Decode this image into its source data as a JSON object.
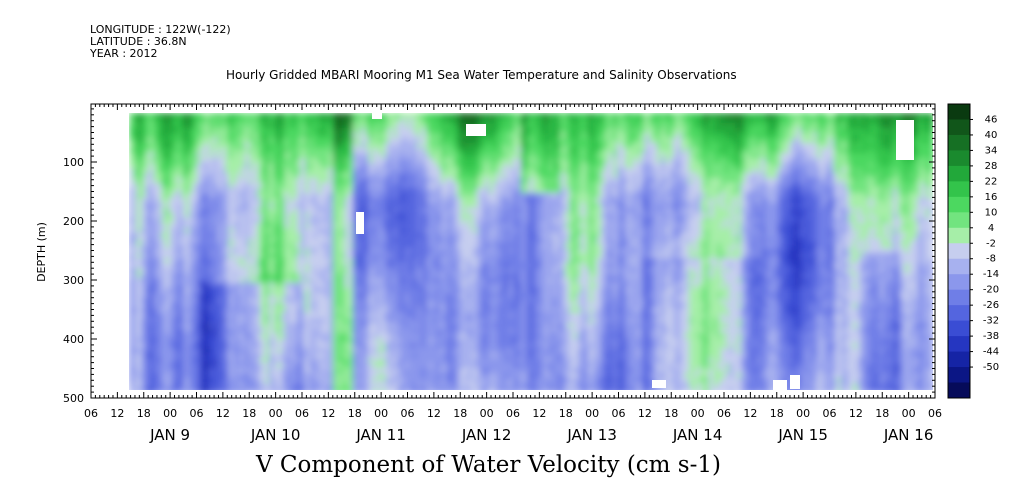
{
  "header": {
    "longitude": "LONGITUDE : 122W(-122)",
    "latitude": "LATITUDE : 36.8N",
    "year": "YEAR : 2012",
    "title": "Hourly Gridded MBARI Mooring M1 Sea Water Temperature and Salinity Observations"
  },
  "chart_data": {
    "type": "heatmap",
    "title": "V Component of Water Velocity (cm s-1)",
    "ylabel": "DEPTH (m)",
    "xlabel": "",
    "ylim": [
      500,
      0
    ],
    "yticks": [
      "100",
      "200",
      "300",
      "400",
      "500"
    ],
    "yvalues": [
      100,
      200,
      300,
      400,
      500
    ],
    "xlim_hours": [
      "JAN 8 06",
      "JAN 16 06"
    ],
    "xtick_hour_labels": [
      "06",
      "12",
      "18",
      "00",
      "06",
      "12",
      "18",
      "00",
      "06",
      "12",
      "18",
      "00",
      "06",
      "12",
      "18",
      "00",
      "06",
      "12",
      "18",
      "00",
      "06",
      "12",
      "18",
      "00",
      "06",
      "12",
      "18",
      "00",
      "06",
      "12",
      "18",
      "00",
      "06"
    ],
    "day_labels": [
      "JAN  9",
      "JAN 10",
      "JAN 11",
      "JAN 12",
      "JAN 13",
      "JAN 14",
      "JAN 15",
      "JAN 16"
    ],
    "data_range": {
      "time_start": "JAN 8 12",
      "time_end": "JAN 16 06",
      "depth_top": 20,
      "depth_bottom": 485
    },
    "colorbar": {
      "levels": [
        "46",
        "40",
        "34",
        "28",
        "22",
        "16",
        "10",
        "4",
        "-2",
        "-8",
        "-14",
        "-20",
        "-26",
        "-32",
        "-38",
        "-44",
        "-50"
      ],
      "colors": [
        "#0a3a10",
        "#11561a",
        "#167024",
        "#1a8a2e",
        "#22a83a",
        "#33c44b",
        "#4cd860",
        "#72e47f",
        "#a6eea8",
        "#c6ceef",
        "#a7b1ef",
        "#8b97ec",
        "#6f7ee7",
        "#5465df",
        "#3a4dd4",
        "#2536c1",
        "#1524a5",
        "#0b1685",
        "#060b5a"
      ]
    },
    "grid": false
  }
}
